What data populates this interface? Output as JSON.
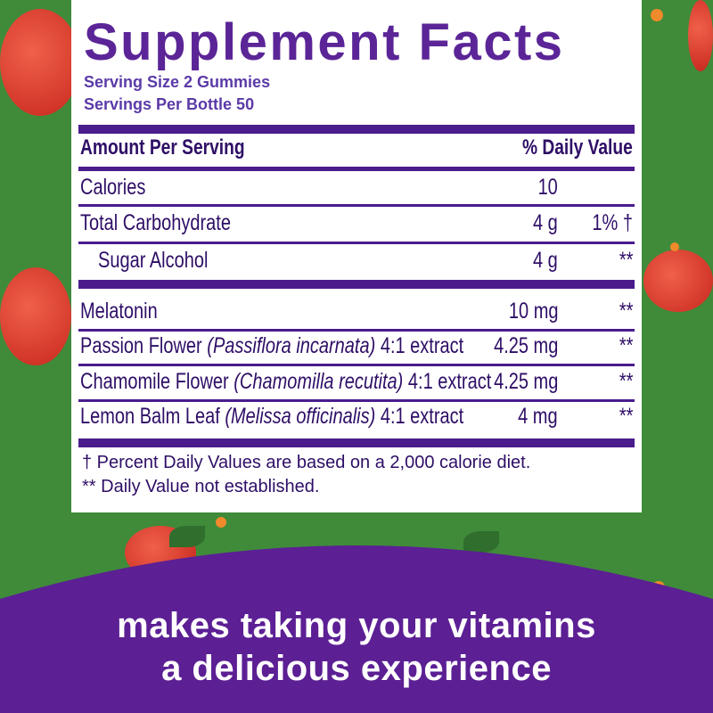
{
  "panel": {
    "title": "Supplement Facts",
    "serving_size": "Serving Size 2 Gummies",
    "servings_per": "Servings Per Bottle 50",
    "header_amount": "Amount Per Serving",
    "header_dv": "% Daily Value",
    "rows": [
      {
        "label": "Calories",
        "amount": "10",
        "dv": ""
      },
      {
        "label": "Total Carbohydrate",
        "amount": "4 g",
        "dv": "1% †"
      },
      {
        "label": "Sugar Alcohol",
        "amount": "4 g",
        "dv": "**"
      },
      {
        "label": "Melatonin",
        "amount": "10 mg",
        "dv": "**"
      },
      {
        "label": "Passion Flower",
        "latin": "(Passiflora incarnata)",
        "suffix": "4:1 extract",
        "amount": "4.25 mg",
        "dv": "**"
      },
      {
        "label": "Chamomile Flower",
        "latin": "(Chamomilla recutita)",
        "suffix": "4:1 extract",
        "amount": "4.25 mg",
        "dv": "**"
      },
      {
        "label": "Lemon Balm Leaf",
        "latin": "(Melissa officinalis)",
        "suffix": "4:1 extract",
        "amount": "4 mg",
        "dv": "**"
      }
    ],
    "footnote_1": "† Percent Daily Values are based on a 2,000 calorie diet.",
    "footnote_2": "** Daily Value not established."
  },
  "tagline": {
    "line1": "makes taking your vitamins",
    "line2": "a delicious experience"
  },
  "colors": {
    "background": "#3f8b3a",
    "purple": "#5c1f94",
    "text": "#2e0e66"
  }
}
